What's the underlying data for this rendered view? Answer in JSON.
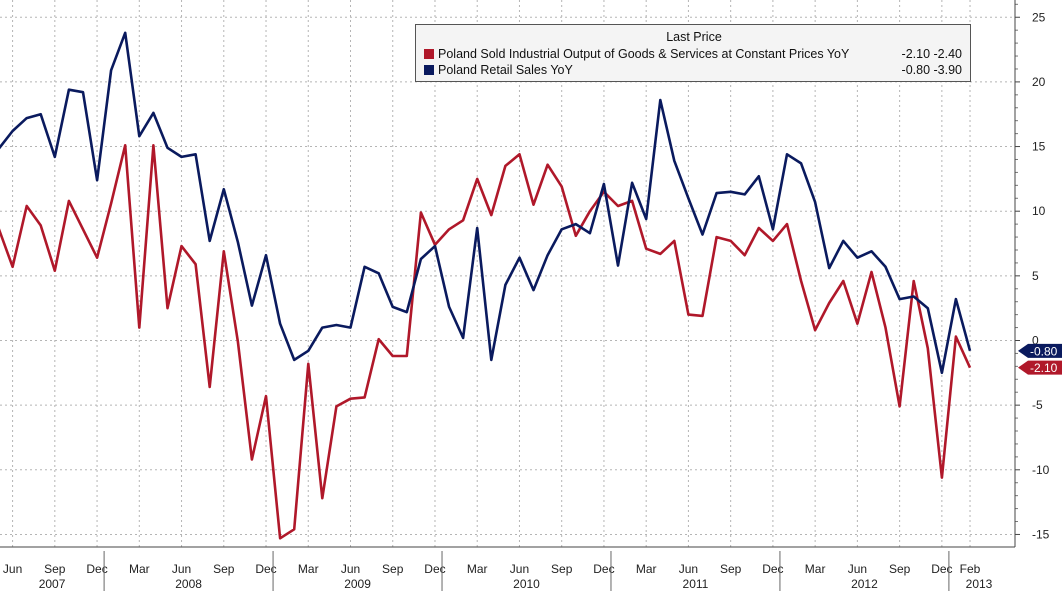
{
  "legend": {
    "header": "Last Price",
    "entries": [
      {
        "name": "Poland Sold Industrial Output of Goods & Services at Constant Prices YoY",
        "values": "-2.10   -2.40",
        "color": "#b0182a"
      },
      {
        "name": "Poland Retail Sales YoY",
        "values": "-0.80   -3.90",
        "color": "#0a1a5e"
      }
    ]
  },
  "chart_data": {
    "type": "line",
    "x": [
      "2007-05",
      "2007-06",
      "2007-07",
      "2007-08",
      "2007-09",
      "2007-10",
      "2007-11",
      "2007-12",
      "2008-01",
      "2008-02",
      "2008-03",
      "2008-04",
      "2008-05",
      "2008-06",
      "2008-07",
      "2008-08",
      "2008-09",
      "2008-10",
      "2008-11",
      "2008-12",
      "2009-01",
      "2009-02",
      "2009-03",
      "2009-04",
      "2009-05",
      "2009-06",
      "2009-07",
      "2009-08",
      "2009-09",
      "2009-10",
      "2009-11",
      "2009-12",
      "2010-01",
      "2010-02",
      "2010-03",
      "2010-04",
      "2010-05",
      "2010-06",
      "2010-07",
      "2010-08",
      "2010-09",
      "2010-10",
      "2010-11",
      "2010-12",
      "2011-01",
      "2011-02",
      "2011-03",
      "2011-04",
      "2011-05",
      "2011-06",
      "2011-07",
      "2011-08",
      "2011-09",
      "2011-10",
      "2011-11",
      "2011-12",
      "2012-01",
      "2012-02",
      "2012-03",
      "2012-04",
      "2012-05",
      "2012-06",
      "2012-07",
      "2012-08",
      "2012-09",
      "2012-10",
      "2012-11",
      "2012-12",
      "2013-01",
      "2013-02"
    ],
    "series": [
      {
        "name": "Poland Sold Industrial Output of Goods & Services at Constant Prices YoY",
        "color": "#b0182a",
        "values": [
          8.7,
          5.7,
          10.4,
          8.9,
          5.4,
          10.8,
          8.6,
          6.4,
          10.6,
          15.1,
          1.0,
          15.1,
          2.5,
          7.3,
          5.9,
          -3.6,
          6.9,
          -0.1,
          -9.2,
          -4.3,
          -15.3,
          -14.6,
          -1.8,
          -12.2,
          -5.1,
          -4.5,
          -4.4,
          0.1,
          -1.2,
          -1.2,
          9.9,
          7.4,
          8.6,
          9.3,
          12.5,
          9.7,
          13.5,
          14.4,
          10.5,
          13.6,
          11.9,
          8.1,
          10.0,
          11.5,
          10.4,
          10.8,
          7.1,
          6.7,
          7.7,
          2.0,
          1.9,
          8.0,
          7.7,
          6.6,
          8.7,
          7.7,
          9.0,
          4.6,
          0.8,
          2.9,
          4.6,
          1.3,
          5.3,
          1.0,
          -5.1,
          4.6,
          -0.6,
          -10.6,
          0.3,
          -2.1
        ]
      },
      {
        "name": "Poland Retail Sales YoY",
        "color": "#0a1a5e",
        "values": [
          14.8,
          16.2,
          17.2,
          17.5,
          14.2,
          19.4,
          19.2,
          12.4,
          20.9,
          23.8,
          15.8,
          17.6,
          14.9,
          14.2,
          14.4,
          7.7,
          11.7,
          7.6,
          2.7,
          6.6,
          1.3,
          -1.5,
          -0.8,
          1.0,
          1.2,
          1.0,
          5.7,
          5.2,
          2.6,
          2.2,
          6.3,
          7.3,
          2.6,
          0.2,
          8.7,
          -1.5,
          4.3,
          6.4,
          3.9,
          6.6,
          8.6,
          9.0,
          8.3,
          12.1,
          5.8,
          12.2,
          9.4,
          18.6,
          13.9,
          11.0,
          8.2,
          11.4,
          11.5,
          11.3,
          12.7,
          8.6,
          14.4,
          13.7,
          10.7,
          5.6,
          7.7,
          6.4,
          6.9,
          5.7,
          3.2,
          3.4,
          2.5,
          -2.5,
          3.2,
          -0.8
        ]
      }
    ],
    "y_ticks": [
      25,
      20,
      15,
      10,
      5,
      0,
      -5,
      -10,
      -15
    ],
    "y_tick_labels": [
      "25",
      "20",
      "15",
      "10",
      "5",
      "0",
      "-5",
      "-10",
      "-15"
    ],
    "ylim": [
      -17,
      26
    ],
    "x_tick_labels": [
      {
        "at": "2007-06",
        "label": "Jun"
      },
      {
        "at": "2007-09",
        "label": "Sep"
      },
      {
        "at": "2007-12",
        "label": "Dec"
      },
      {
        "at": "2008-03",
        "label": "Mar"
      },
      {
        "at": "2008-06",
        "label": "Jun"
      },
      {
        "at": "2008-09",
        "label": "Sep"
      },
      {
        "at": "2008-12",
        "label": "Dec"
      },
      {
        "at": "2009-03",
        "label": "Mar"
      },
      {
        "at": "2009-06",
        "label": "Jun"
      },
      {
        "at": "2009-09",
        "label": "Sep"
      },
      {
        "at": "2009-12",
        "label": "Dec"
      },
      {
        "at": "2010-03",
        "label": "Mar"
      },
      {
        "at": "2010-06",
        "label": "Jun"
      },
      {
        "at": "2010-09",
        "label": "Sep"
      },
      {
        "at": "2010-12",
        "label": "Dec"
      },
      {
        "at": "2011-03",
        "label": "Mar"
      },
      {
        "at": "2011-06",
        "label": "Jun"
      },
      {
        "at": "2011-09",
        "label": "Sep"
      },
      {
        "at": "2011-12",
        "label": "Dec"
      },
      {
        "at": "2012-03",
        "label": "Mar"
      },
      {
        "at": "2012-06",
        "label": "Jun"
      },
      {
        "at": "2012-09",
        "label": "Sep"
      },
      {
        "at": "2012-12",
        "label": "Dec"
      },
      {
        "at": "2013-02",
        "label": "Feb"
      }
    ],
    "year_labels": [
      "2007",
      "2008",
      "2009",
      "2010",
      "2011",
      "2012",
      "2013"
    ],
    "last_value_tags": [
      {
        "label": "-0.80",
        "value": -0.8,
        "color": "#0a1a5e"
      },
      {
        "label": "-2.10",
        "value": -2.1,
        "color": "#b0182a"
      }
    ],
    "grid": true,
    "legend_position": "top-right",
    "y_axis_side": "right"
  }
}
